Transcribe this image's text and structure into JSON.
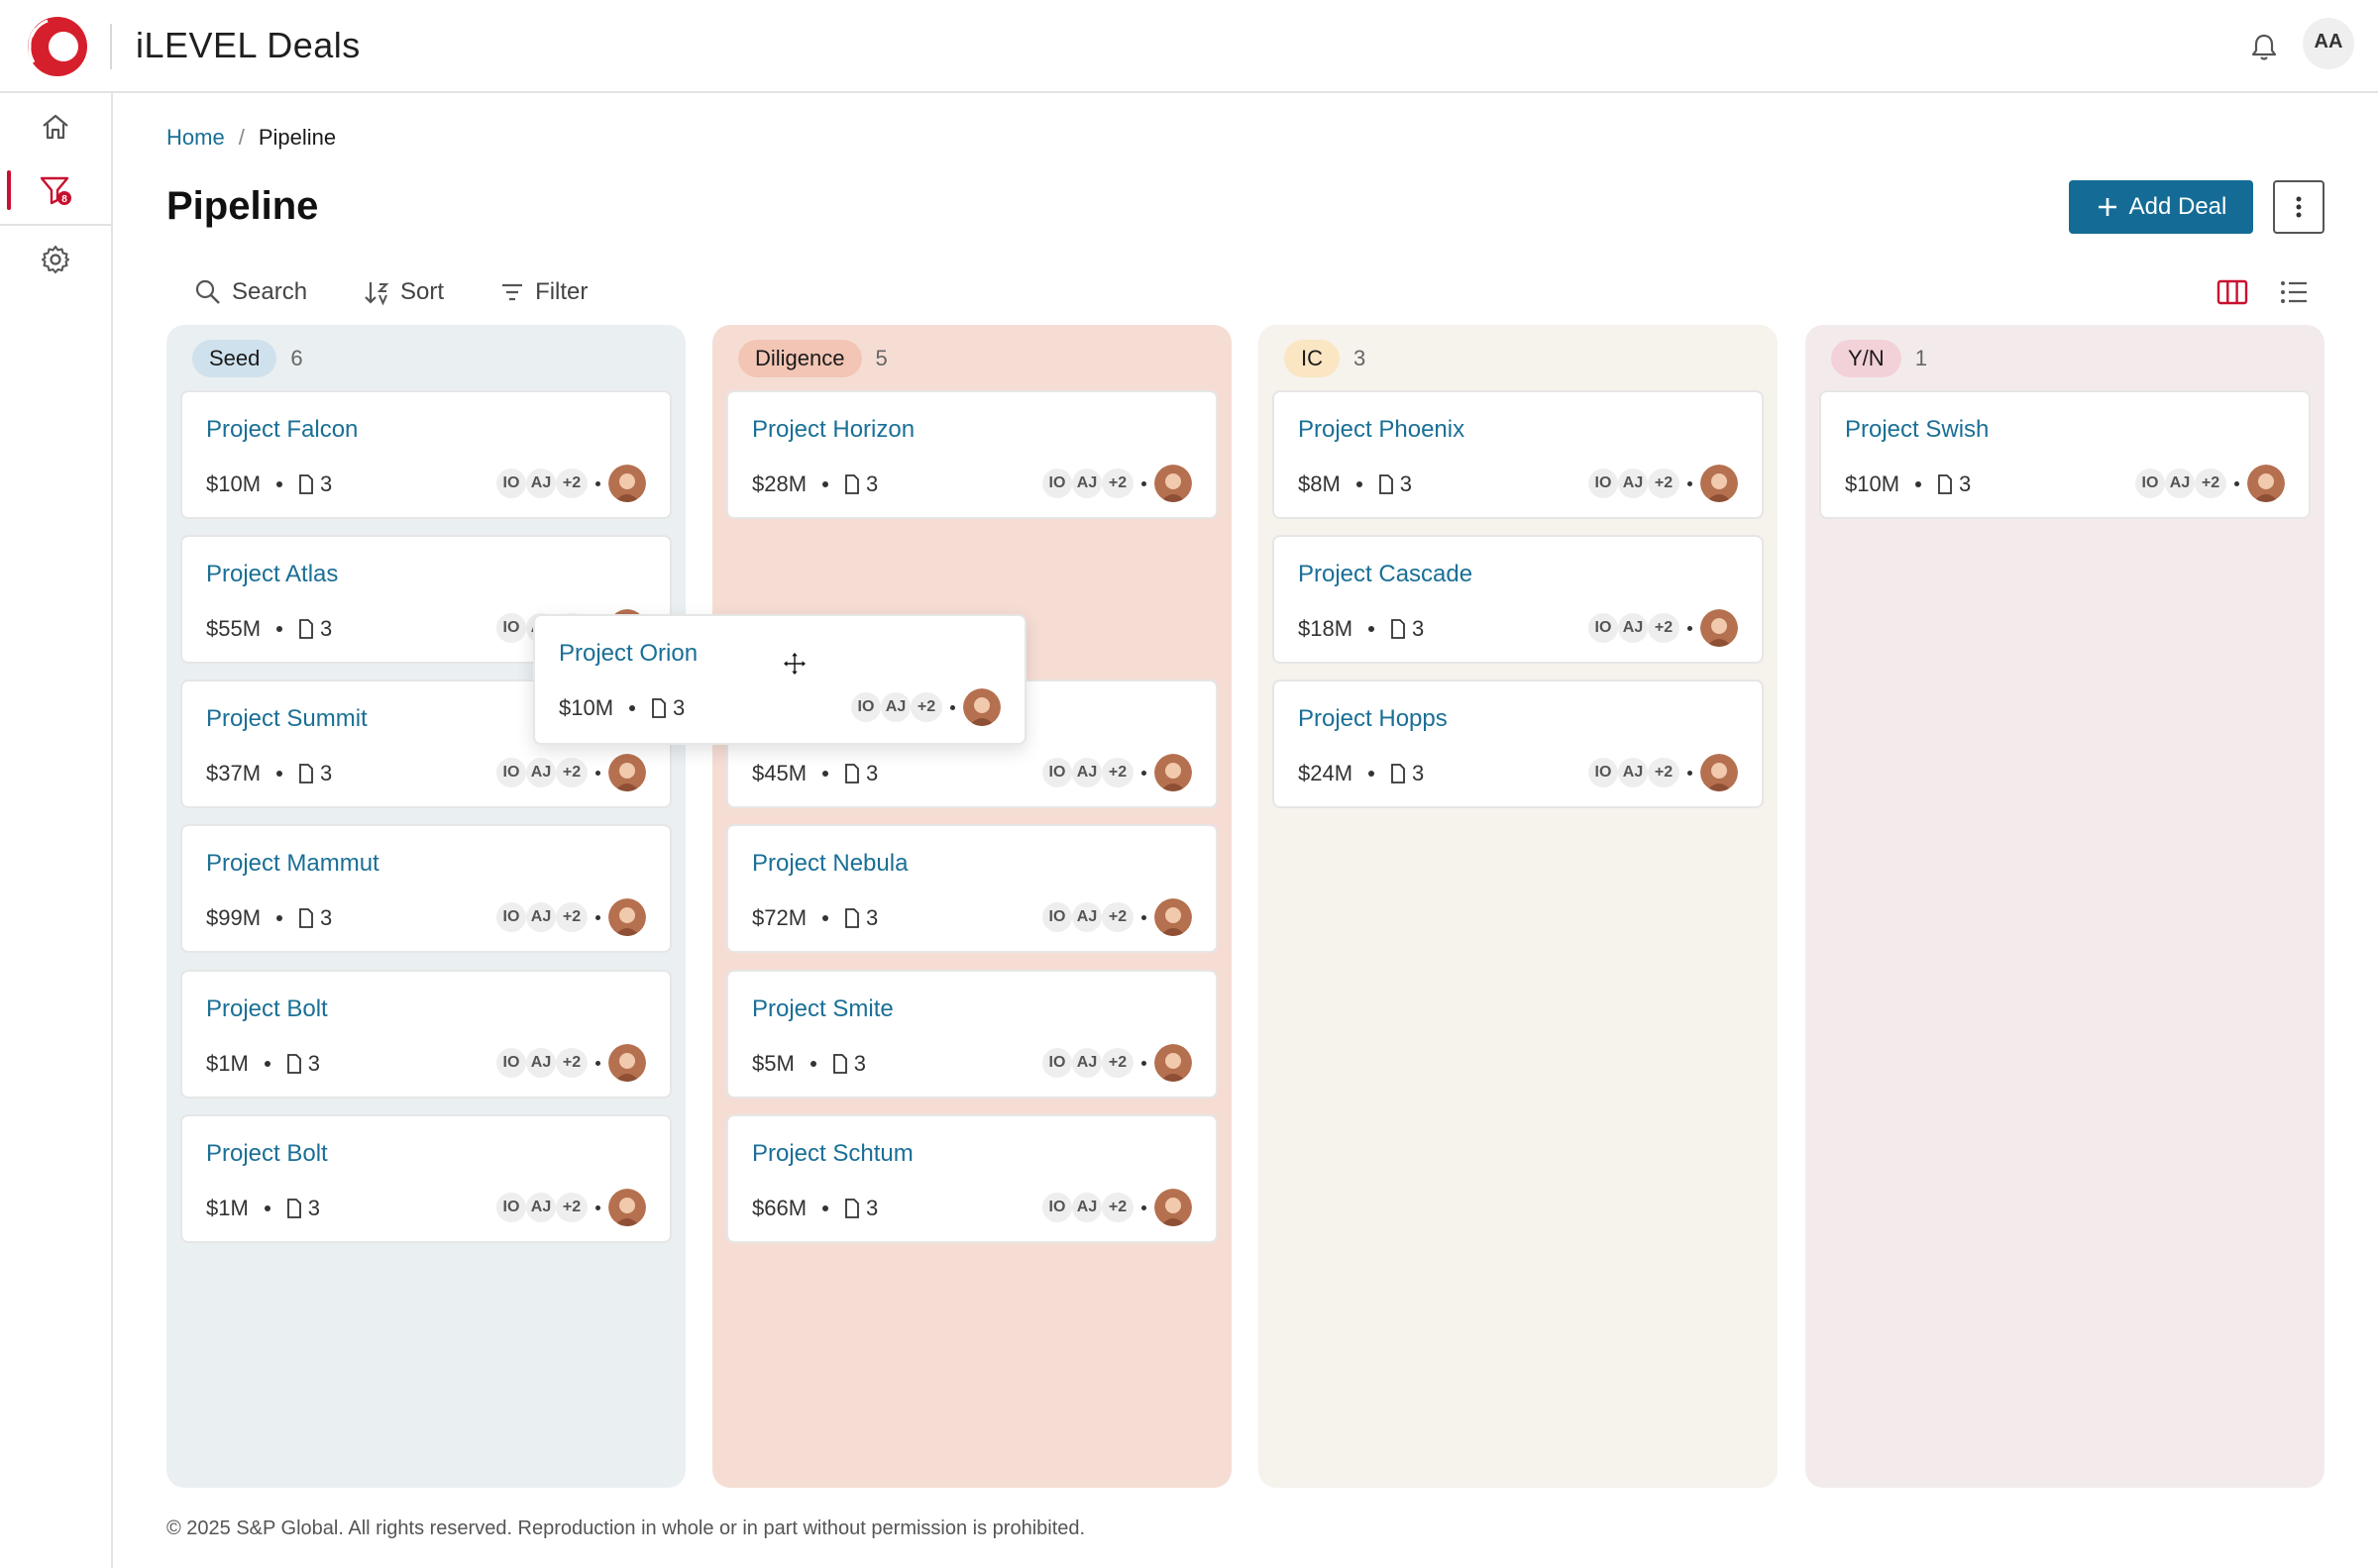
{
  "app": {
    "title": "iLEVEL Deals",
    "user_initials": "AA"
  },
  "breadcrumb": {
    "home": "Home",
    "separator": "/",
    "current": "Pipeline"
  },
  "page": {
    "title": "Pipeline",
    "add_deal_label": "Add Deal"
  },
  "toolbar": {
    "search": "Search",
    "sort": "Sort",
    "filter": "Filter"
  },
  "nav": {
    "filter_badge": "8"
  },
  "colors": {
    "accent": "#146c96",
    "brand": "#c8102e",
    "link": "#1a6f96"
  },
  "columns": [
    {
      "stage": "Seed",
      "count": "6",
      "bg": "#eaeff2",
      "badge_bg": "#cfe1ec",
      "cards": [
        {
          "title": "Project Falcon",
          "amount": "$10M",
          "docs": "3"
        },
        {
          "title": "Project Atlas",
          "amount": "$55M",
          "docs": "3"
        },
        {
          "title": "Project Summit",
          "amount": "$37M",
          "docs": "3"
        },
        {
          "title": "Project Mammut",
          "amount": "$99M",
          "docs": "3"
        },
        {
          "title": "Project Bolt",
          "amount": "$1M",
          "docs": "3"
        },
        {
          "title": "Project Bolt",
          "amount": "$1M",
          "docs": "3"
        }
      ]
    },
    {
      "stage": "Diligence",
      "count": "5",
      "bg": "#f6ddd4",
      "badge_bg": "#f2c5b5",
      "cards": [
        {
          "title": "Project Horizon",
          "amount": "$28M",
          "docs": "3"
        },
        {
          "title": "",
          "amount": "$45M",
          "docs": "3"
        },
        {
          "title": "Project Nebula",
          "amount": "$72M",
          "docs": "3"
        },
        {
          "title": "Project Smite",
          "amount": "$5M",
          "docs": "3"
        },
        {
          "title": "Project Schtum",
          "amount": "$66M",
          "docs": "3"
        }
      ]
    },
    {
      "stage": "IC",
      "count": "3",
      "bg": "#f6f2ec",
      "badge_bg": "#fbe6c4",
      "cards": [
        {
          "title": "Project Phoenix",
          "amount": "$8M",
          "docs": "3"
        },
        {
          "title": "Project Cascade",
          "amount": "$18M",
          "docs": "3"
        },
        {
          "title": "Project Hopps",
          "amount": "$24M",
          "docs": "3"
        }
      ]
    },
    {
      "stage": "Y/N",
      "count": "1",
      "bg": "#f3ebeb",
      "badge_bg": "#f3d1d8",
      "cards": [
        {
          "title": "Project Swish",
          "amount": "$10M",
          "docs": "3"
        }
      ]
    }
  ],
  "team": {
    "a": "IO",
    "b": "AJ",
    "more": "+2"
  },
  "dragging_card": {
    "title": "Project Orion",
    "amount": "$10M",
    "docs": "3"
  },
  "footer": "© 2025 S&P Global. All rights reserved. Reproduction in whole or in part without permission is prohibited."
}
